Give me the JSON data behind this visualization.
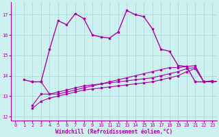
{
  "xlabel": "Windchill (Refroidissement éolien,°C)",
  "xlim": [
    -0.5,
    23.5
  ],
  "ylim": [
    11.8,
    17.6
  ],
  "yticks": [
    12,
    13,
    14,
    15,
    16,
    17
  ],
  "xticks": [
    0,
    1,
    2,
    3,
    4,
    5,
    6,
    7,
    8,
    9,
    10,
    11,
    12,
    13,
    14,
    15,
    16,
    17,
    18,
    19,
    20,
    21,
    22,
    23
  ],
  "bg_color": "#cdf0f0",
  "line_color": "#aa00aa",
  "grid_color": "#b0d8d8",
  "line1": [
    13.8,
    13.7,
    13.7,
    15.3,
    16.7,
    16.5,
    17.05,
    16.8,
    16.0,
    15.9,
    15.85,
    16.15,
    17.2,
    17.0,
    16.9,
    16.3,
    15.3,
    15.2,
    14.5,
    14.45,
    13.7,
    13.7,
    13.75
  ],
  "line2": [
    13.7,
    13.7,
    13.1,
    13.1,
    13.2,
    13.3,
    13.4,
    13.5,
    13.6,
    13.7,
    13.8,
    13.9,
    14.0,
    14.1,
    14.2,
    14.3,
    14.4,
    14.4,
    14.45,
    14.5,
    13.7,
    13.7,
    13.75
  ],
  "line3": [
    12.55,
    13.1,
    13.1,
    13.2,
    13.3,
    13.4,
    13.5,
    13.55,
    13.6,
    13.65,
    13.7,
    13.75,
    13.8,
    13.85,
    13.9,
    14.0,
    14.1,
    14.2,
    14.35,
    14.4,
    13.7,
    13.7,
    13.75
  ],
  "line4": [
    12.4,
    12.75,
    12.9,
    13.0,
    13.1,
    13.2,
    13.3,
    13.35,
    13.4,
    13.45,
    13.5,
    13.55,
    13.6,
    13.65,
    13.7,
    13.8,
    13.9,
    14.0,
    14.2,
    14.35,
    13.7,
    13.7,
    13.75
  ],
  "x1_start": 1,
  "x2_start": 2,
  "x3_start": 2,
  "x4_start": 2
}
